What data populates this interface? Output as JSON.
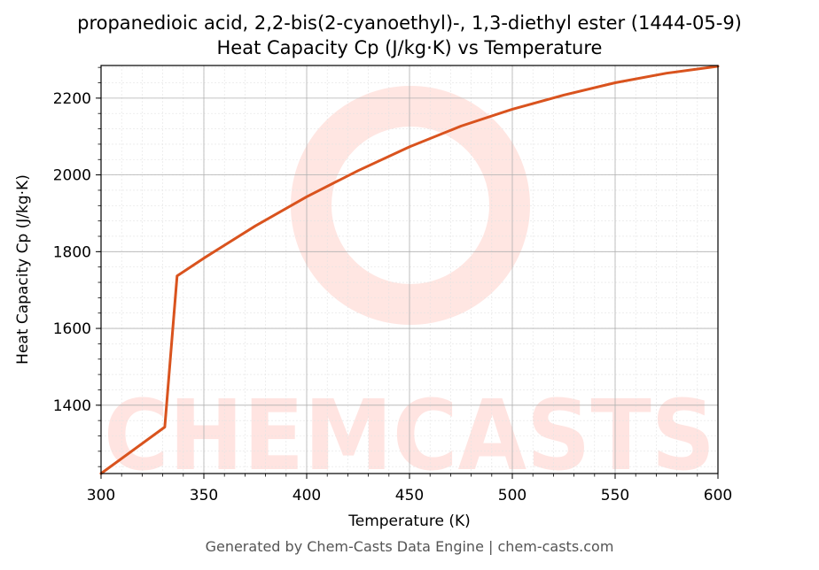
{
  "chart_data": {
    "type": "line",
    "title_line1": "propanedioic acid, 2,2-bis(2-cyanoethyl)-, 1,3-diethyl ester (1444-05-9)",
    "title_line2": "Heat Capacity Cp (J/kg·K) vs Temperature",
    "xlabel": "Temperature (K)",
    "ylabel": "Heat Capacity Cp (J/kg·K)",
    "xlim": [
      300,
      600
    ],
    "ylim": [
      1222,
      2285
    ],
    "x_ticks": [
      300,
      350,
      400,
      450,
      500,
      550,
      600
    ],
    "y_ticks": [
      1400,
      1600,
      1800,
      2000,
      2200
    ],
    "grid": true,
    "line_color": "#d9531e",
    "series": [
      {
        "x": [
          300,
          331,
          337,
          350,
          375,
          400,
          425,
          450,
          475,
          500,
          525,
          550,
          575,
          600
        ],
        "y": [
          1222,
          1343,
          1737,
          1783,
          1867,
          1943,
          2011,
          2073,
          2127,
          2171,
          2208,
          2240,
          2265,
          2283
        ]
      }
    ]
  },
  "watermark": "CHEMCASTS",
  "footer": "Generated by Chem-Casts Data Engine | chem-casts.com"
}
